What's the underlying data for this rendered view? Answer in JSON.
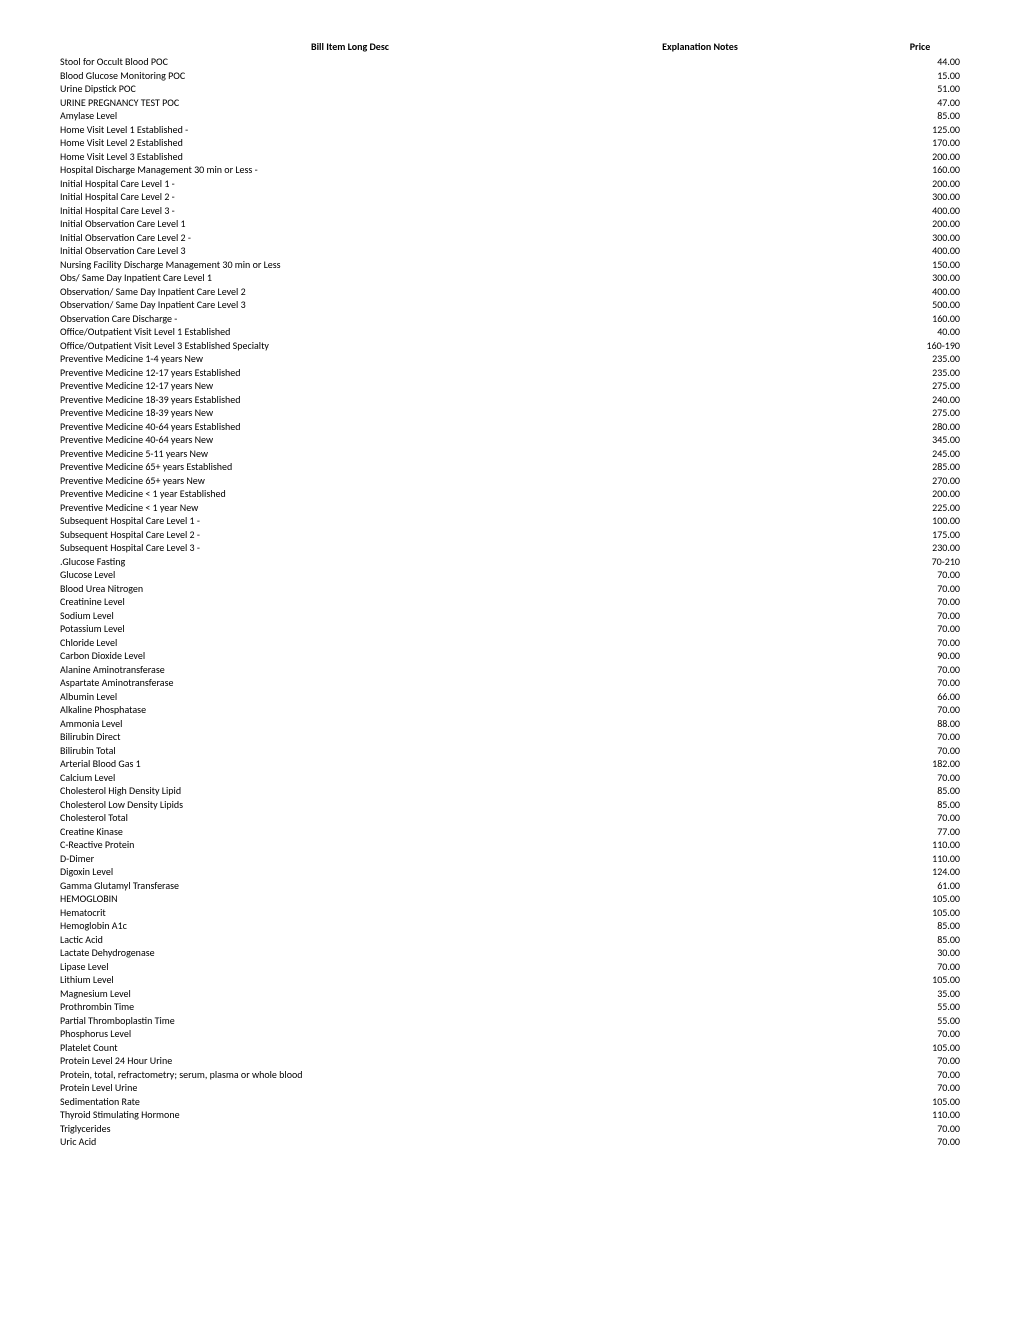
{
  "headers": {
    "desc": "Bill Item Long Desc",
    "notes": "Explanation Notes",
    "price": "Price"
  },
  "rows": [
    {
      "desc": "Stool for Occult Blood POC",
      "price": "44.00"
    },
    {
      "desc": "Blood Glucose Monitoring POC",
      "price": "15.00"
    },
    {
      "desc": "Urine Dipstick POC",
      "price": "51.00"
    },
    {
      "desc": "URINE PREGNANCY TEST POC",
      "price": "47.00"
    },
    {
      "desc": "Amylase Level",
      "price": "85.00"
    },
    {
      "desc": "Home Visit Level 1 Established -",
      "price": "125.00"
    },
    {
      "desc": "Home Visit Level 2 Established",
      "price": "170.00"
    },
    {
      "desc": "Home Visit Level 3 Established",
      "price": "200.00"
    },
    {
      "desc": "Hospital Discharge Management 30 min or Less -",
      "price": "160.00"
    },
    {
      "desc": "Initial Hospital Care Level 1 -",
      "price": "200.00"
    },
    {
      "desc": "Initial Hospital Care Level 2 -",
      "price": "300.00"
    },
    {
      "desc": "Initial Hospital Care Level 3 -",
      "price": "400.00"
    },
    {
      "desc": "Initial Observation Care Level 1",
      "price": "200.00"
    },
    {
      "desc": "Initial Observation Care Level 2 -",
      "price": "300.00"
    },
    {
      "desc": "Initial Observation Care Level 3",
      "price": "400.00"
    },
    {
      "desc": "Nursing Facility Discharge Management 30 min or Less",
      "price": "150.00"
    },
    {
      "desc": "Obs/ Same Day Inpatient Care Level 1",
      "price": "300.00"
    },
    {
      "desc": "Observation/ Same Day Inpatient Care Level 2",
      "price": "400.00"
    },
    {
      "desc": "Observation/ Same Day Inpatient Care Level 3",
      "price": "500.00"
    },
    {
      "desc": "Observation Care Discharge -",
      "price": "160.00"
    },
    {
      "desc": "Office/Outpatient Visit Level 1 Established",
      "price": "40.00"
    },
    {
      "desc": "Office/Outpatient Visit Level 3 Established Specialty",
      "price": "160-190"
    },
    {
      "desc": "Preventive Medicine 1-4 years New",
      "price": "235.00"
    },
    {
      "desc": "Preventive Medicine 12-17 years Established",
      "price": "235.00"
    },
    {
      "desc": "Preventive Medicine 12-17 years New",
      "price": "275.00"
    },
    {
      "desc": "Preventive Medicine 18-39 years Established",
      "price": "240.00"
    },
    {
      "desc": "Preventive Medicine 18-39 years New",
      "price": "275.00"
    },
    {
      "desc": "Preventive Medicine 40-64 years Established",
      "price": "280.00"
    },
    {
      "desc": "Preventive Medicine 40-64 years New",
      "price": "345.00"
    },
    {
      "desc": "Preventive Medicine 5-11 years New",
      "price": "245.00"
    },
    {
      "desc": "Preventive Medicine 65+ years Established",
      "price": "285.00"
    },
    {
      "desc": "Preventive Medicine 65+ years New",
      "price": "270.00"
    },
    {
      "desc": "Preventive Medicine < 1 year Established",
      "price": "200.00"
    },
    {
      "desc": "Preventive Medicine < 1 year New",
      "price": "225.00"
    },
    {
      "desc": "Subsequent Hospital Care Level 1 -",
      "price": "100.00"
    },
    {
      "desc": "Subsequent Hospital Care Level 2 -",
      "price": "175.00"
    },
    {
      "desc": "Subsequent Hospital Care Level 3 -",
      "price": "230.00"
    },
    {
      "desc": ".Glucose Fasting",
      "price": "70-210"
    },
    {
      "desc": "Glucose Level",
      "price": "70.00"
    },
    {
      "desc": "Blood Urea Nitrogen",
      "price": "70.00"
    },
    {
      "desc": "Creatinine Level",
      "price": "70.00"
    },
    {
      "desc": "Sodium Level",
      "price": "70.00"
    },
    {
      "desc": "Potassium Level",
      "price": "70.00"
    },
    {
      "desc": "Chloride Level",
      "price": "70.00"
    },
    {
      "desc": "Carbon Dioxide Level",
      "price": "90.00"
    },
    {
      "desc": "Alanine Aminotransferase",
      "price": "70.00"
    },
    {
      "desc": "Aspartate Aminotransferase",
      "price": "70.00"
    },
    {
      "desc": "Albumin Level",
      "price": "66.00"
    },
    {
      "desc": "Alkaline Phosphatase",
      "price": "70.00"
    },
    {
      "desc": "Ammonia Level",
      "price": "88.00"
    },
    {
      "desc": "Bilirubin Direct",
      "price": "70.00"
    },
    {
      "desc": "Bilirubin Total",
      "price": "70.00"
    },
    {
      "desc": "Arterial Blood Gas 1",
      "price": "182.00"
    },
    {
      "desc": "Calcium Level",
      "price": "70.00"
    },
    {
      "desc": "Cholesterol High Density Lipid",
      "price": "85.00"
    },
    {
      "desc": "Cholesterol Low Density Lipids",
      "price": "85.00"
    },
    {
      "desc": "Cholesterol Total",
      "price": "70.00"
    },
    {
      "desc": "Creatine Kinase",
      "price": "77.00"
    },
    {
      "desc": "C-Reactive Protein",
      "price": "110.00"
    },
    {
      "desc": "D-Dimer",
      "price": "110.00"
    },
    {
      "desc": "Digoxin Level",
      "price": "124.00"
    },
    {
      "desc": "Gamma Glutamyl Transferase",
      "price": "61.00"
    },
    {
      "desc": "HEMOGLOBIN",
      "price": "105.00"
    },
    {
      "desc": "Hematocrit",
      "price": "105.00"
    },
    {
      "desc": "Hemoglobin A1c",
      "price": "85.00"
    },
    {
      "desc": "Lactic Acid",
      "price": "85.00"
    },
    {
      "desc": "Lactate Dehydrogenase",
      "price": "30.00"
    },
    {
      "desc": "Lipase Level",
      "price": "70.00"
    },
    {
      "desc": "Lithium Level",
      "price": "105.00"
    },
    {
      "desc": "Magnesium Level",
      "price": "35.00"
    },
    {
      "desc": "Prothrombin Time",
      "price": "55.00"
    },
    {
      "desc": "Partial Thromboplastin Time",
      "price": "55.00"
    },
    {
      "desc": "Phosphorus Level",
      "price": "70.00"
    },
    {
      "desc": "Platelet Count",
      "price": "105.00"
    },
    {
      "desc": "Protein Level 24 Hour Urine",
      "price": "70.00"
    },
    {
      "desc": "Protein, total, refractometry; serum, plasma or whole blood",
      "price": "70.00"
    },
    {
      "desc": "Protein Level Urine",
      "price": "70.00"
    },
    {
      "desc": "Sedimentation Rate",
      "price": "105.00"
    },
    {
      "desc": "Thyroid Stimulating Hormone",
      "price": "110.00"
    },
    {
      "desc": "Triglycerides",
      "price": "70.00"
    },
    {
      "desc": "Uric Acid",
      "price": "70.00"
    }
  ]
}
